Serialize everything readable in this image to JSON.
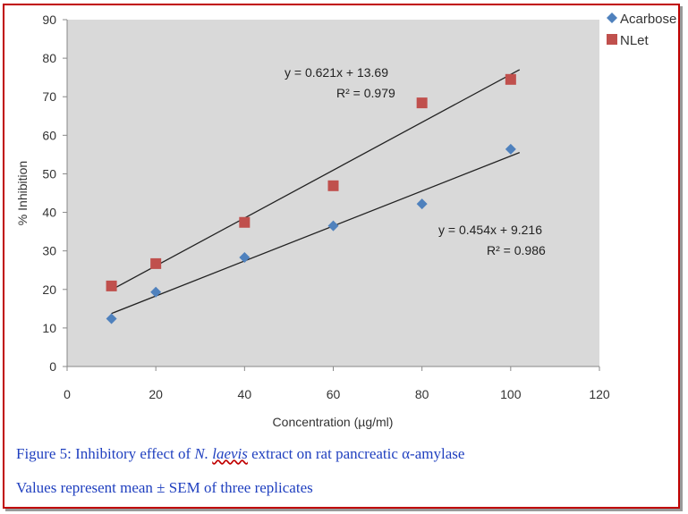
{
  "chart_data": {
    "type": "scatter",
    "xlabel": "Concentration (µg/ml)",
    "ylabel": "% Inhibition",
    "xlim": [
      0,
      120
    ],
    "ylim": [
      0,
      90
    ],
    "xticks": [
      0,
      20,
      40,
      60,
      80,
      100,
      120
    ],
    "yticks": [
      0,
      10,
      20,
      30,
      40,
      50,
      60,
      70,
      80,
      90
    ],
    "legend_position": "top-right",
    "series": [
      {
        "name": "Acarbose",
        "marker": "diamond",
        "color": "#4f81bd",
        "x": [
          10,
          20,
          40,
          60,
          80,
          100
        ],
        "y": [
          12.4,
          19.3,
          28.3,
          36.5,
          42.2,
          56.4
        ],
        "trendline": {
          "slope": 0.454,
          "intercept": 9.216,
          "x_range": [
            10,
            102
          ],
          "equation": "y = 0.454x + 9.216",
          "r2": "R² = 0.986"
        }
      },
      {
        "name": "NLet",
        "marker": "square",
        "color": "#c0504d",
        "x": [
          10,
          20,
          40,
          60,
          80,
          100
        ],
        "y": [
          20.9,
          26.7,
          37.4,
          46.9,
          68.4,
          74.5
        ],
        "trendline": {
          "slope": 0.621,
          "intercept": 13.69,
          "x_range": [
            10,
            102
          ],
          "equation": "y = 0.621x + 13.69",
          "r2": "R² = 0.979"
        }
      }
    ]
  },
  "caption": {
    "line1_prefix": "Figure 5: Inhibitory effect of ",
    "species_abbr": "N.",
    "species": "laevis",
    "line1_suffix": " extract on rat pancreatic α-amylase",
    "line2": "Values represent mean ± SEM of three replicates"
  }
}
